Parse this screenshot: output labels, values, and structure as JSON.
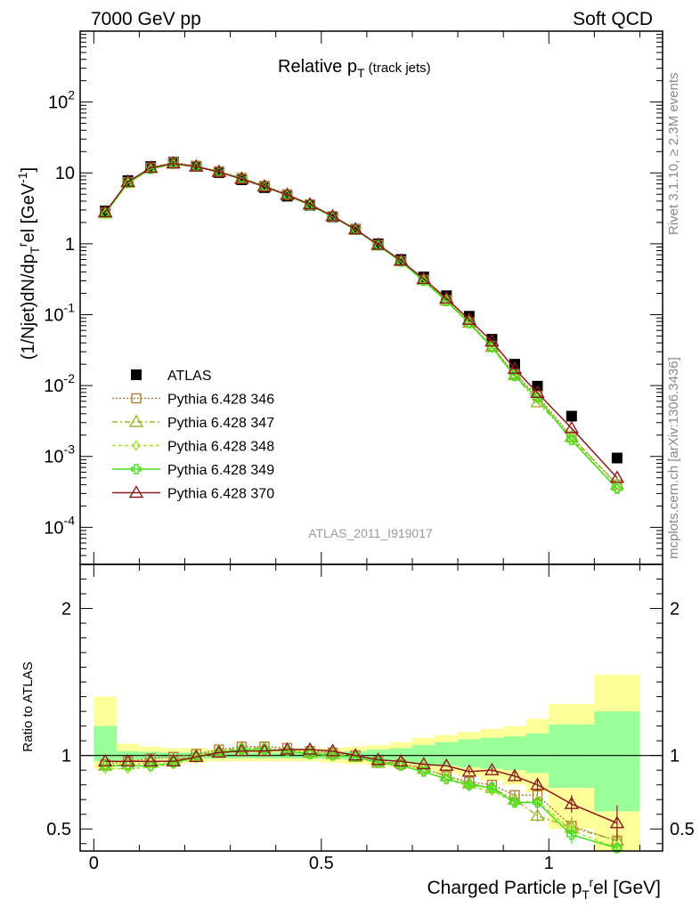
{
  "header": {
    "left_label": "7000 GeV pp",
    "right_label": "Soft QCD"
  },
  "side_labels": {
    "rivet": "Rivet 3.1.10, ≥ 2.3M events",
    "mcplots": "mcplots.cern.ch [arXiv:1306.3436]"
  },
  "chart_data": [
    {
      "type": "line",
      "title": "Relative p_T (track jets)",
      "ylabel": "(1/Njet)dN/dp_T^rel [GeV^-1]",
      "xlabel": "Charged Particle p_T^rel [GeV]",
      "analysis_tag": "ATLAS_2011_I919017",
      "yscale": "log",
      "xlim": [
        -0.03,
        1.25
      ],
      "ylim": [
        3e-05,
        1000
      ],
      "y_tick_labels": [
        "10^2",
        "10",
        "1",
        "10^-1",
        "10^-2",
        "10^-3",
        "10^-4"
      ],
      "legend_position": "center-left",
      "x": [
        0.025,
        0.075,
        0.125,
        0.175,
        0.225,
        0.275,
        0.325,
        0.375,
        0.425,
        0.475,
        0.525,
        0.575,
        0.625,
        0.675,
        0.725,
        0.775,
        0.825,
        0.875,
        0.925,
        0.975,
        1.05,
        1.15
      ],
      "series": [
        {
          "name": "ATLAS",
          "color": "#000000",
          "marker": "square-filled",
          "dash": "none",
          "values": [
            2.9,
            7.8,
            12.3,
            14.2,
            12.4,
            10.1,
            8.0,
            6.2,
            4.7,
            3.5,
            2.4,
            1.6,
            1.0,
            0.6,
            0.34,
            0.185,
            0.095,
            0.045,
            0.02,
            0.0098,
            0.0037,
            0.00095
          ]
        },
        {
          "name": "Pythia 6.428 346",
          "color": "#b07d3a",
          "marker": "square-open",
          "dash": "2,2",
          "values": [
            2.75,
            7.4,
            11.9,
            14.1,
            12.5,
            10.5,
            8.5,
            6.6,
            5.0,
            3.6,
            2.45,
            1.6,
            0.96,
            0.57,
            0.31,
            0.16,
            0.078,
            0.036,
            0.0146,
            0.0072,
            0.0019,
            0.0004
          ]
        },
        {
          "name": "Pythia 6.428 347",
          "color": "#9ab52a",
          "marker": "triangle-open",
          "dash": "6,3,2,3",
          "values": [
            2.7,
            7.3,
            11.7,
            13.8,
            12.3,
            10.4,
            8.4,
            6.5,
            4.9,
            3.55,
            2.42,
            1.58,
            0.95,
            0.57,
            0.31,
            0.158,
            0.077,
            0.035,
            0.014,
            0.0058,
            0.0019,
            0.0004
          ]
        },
        {
          "name": "Pythia 6.428 348",
          "color": "#a2e02a",
          "marker": "diamond-open",
          "dash": "4,3",
          "values": [
            2.65,
            7.1,
            11.3,
            13.3,
            12.1,
            10.3,
            8.3,
            6.4,
            4.85,
            3.5,
            2.4,
            1.58,
            0.95,
            0.56,
            0.3,
            0.155,
            0.075,
            0.034,
            0.0135,
            0.0068,
            0.0018,
            0.00035
          ]
        },
        {
          "name": "Pythia 6.428 349",
          "color": "#44dd1c",
          "marker": "cross-open",
          "dash": "none",
          "values": [
            2.7,
            7.2,
            11.4,
            13.5,
            12.2,
            10.3,
            8.3,
            6.4,
            4.85,
            3.5,
            2.4,
            1.58,
            0.95,
            0.56,
            0.3,
            0.155,
            0.076,
            0.035,
            0.0136,
            0.0067,
            0.0017,
            0.00035
          ]
        },
        {
          "name": "Pythia 6.428 370",
          "color": "#8b1a1a",
          "marker": "triangle-open",
          "dash": "none",
          "values": [
            2.8,
            7.5,
            11.8,
            13.6,
            12.3,
            10.3,
            8.2,
            6.4,
            4.9,
            3.6,
            2.45,
            1.6,
            0.97,
            0.58,
            0.32,
            0.17,
            0.085,
            0.042,
            0.0172,
            0.0079,
            0.0025,
            0.0005
          ]
        }
      ]
    },
    {
      "type": "line",
      "ylabel": "Ratio to ATLAS",
      "xlabel": "Charged Particle p_T^rel [GeV]",
      "xlim": [
        -0.03,
        1.25
      ],
      "ylim": [
        0.35,
        2.3
      ],
      "y_ticks": [
        0.5,
        1,
        2
      ],
      "y_tick_labels": [
        "0.5",
        "1",
        "2"
      ],
      "x_ticks": [
        0,
        0.5,
        1
      ],
      "x_tick_labels": [
        "0",
        "0.5",
        "1"
      ],
      "reference_line": 1,
      "uncertainty_bands": {
        "bin_edges": [
          0.0,
          0.05,
          0.1,
          0.15,
          0.2,
          0.25,
          0.3,
          0.35,
          0.4,
          0.45,
          0.5,
          0.55,
          0.6,
          0.65,
          0.7,
          0.75,
          0.8,
          0.85,
          0.9,
          0.95,
          1.0,
          1.1,
          1.2
        ],
        "stat": {
          "color": "#99ff99",
          "low": [
            0.96,
            0.97,
            0.975,
            0.98,
            0.98,
            0.98,
            0.98,
            0.98,
            0.98,
            0.98,
            0.975,
            0.97,
            0.96,
            0.95,
            0.94,
            0.93,
            0.92,
            0.91,
            0.9,
            0.88,
            0.78,
            0.62
          ],
          "high": [
            1.2,
            1.03,
            1.025,
            1.02,
            1.02,
            1.02,
            1.02,
            1.02,
            1.02,
            1.02,
            1.025,
            1.03,
            1.04,
            1.05,
            1.07,
            1.09,
            1.11,
            1.12,
            1.13,
            1.15,
            1.21,
            1.3
          ]
        },
        "total": {
          "color": "#ffff99",
          "low": [
            0.91,
            0.93,
            0.94,
            0.95,
            0.95,
            0.96,
            0.96,
            0.96,
            0.96,
            0.96,
            0.95,
            0.94,
            0.93,
            0.92,
            0.9,
            0.88,
            0.86,
            0.83,
            0.8,
            0.75,
            0.5,
            0.35
          ],
          "high": [
            1.4,
            1.08,
            1.06,
            1.05,
            1.05,
            1.04,
            1.04,
            1.04,
            1.04,
            1.05,
            1.05,
            1.06,
            1.07,
            1.09,
            1.12,
            1.14,
            1.16,
            1.18,
            1.2,
            1.25,
            1.35,
            1.55
          ]
        }
      },
      "series": [
        {
          "name": "Pythia 6.428 346",
          "color": "#b07d3a",
          "marker": "square-open",
          "dash": "2,2",
          "values": [
            0.94,
            0.96,
            0.98,
            0.99,
            1.01,
            1.04,
            1.06,
            1.06,
            1.05,
            1.03,
            1.02,
            1.0,
            0.96,
            0.94,
            0.91,
            0.86,
            0.82,
            0.8,
            0.73,
            0.73,
            0.52,
            0.42
          ],
          "errors": [
            0.01,
            0.01,
            0.01,
            0.01,
            0.01,
            0.01,
            0.01,
            0.01,
            0.01,
            0.01,
            0.01,
            0.01,
            0.01,
            0.01,
            0.01,
            0.01,
            0.02,
            0.02,
            0.03,
            0.04,
            0.06,
            0.08
          ]
        },
        {
          "name": "Pythia 6.428 347",
          "color": "#9ab52a",
          "marker": "triangle-open",
          "dash": "6,3,2,3",
          "values": [
            0.93,
            0.94,
            0.95,
            0.97,
            1.0,
            1.03,
            1.05,
            1.05,
            1.04,
            1.02,
            1.01,
            0.99,
            0.95,
            0.95,
            0.91,
            0.86,
            0.81,
            0.78,
            0.7,
            0.59,
            0.51,
            0.42
          ],
          "errors": [
            0.01,
            0.01,
            0.01,
            0.01,
            0.01,
            0.01,
            0.01,
            0.01,
            0.01,
            0.01,
            0.01,
            0.01,
            0.01,
            0.01,
            0.01,
            0.01,
            0.02,
            0.02,
            0.03,
            0.04,
            0.06,
            0.08
          ]
        },
        {
          "name": "Pythia 6.428 348",
          "color": "#a2e02a",
          "marker": "diamond-open",
          "dash": "4,3",
          "values": [
            0.91,
            0.91,
            0.92,
            0.94,
            0.98,
            1.02,
            1.04,
            1.04,
            1.03,
            1.01,
            1.0,
            0.99,
            0.95,
            0.93,
            0.89,
            0.84,
            0.79,
            0.76,
            0.68,
            0.69,
            0.49,
            0.37
          ],
          "errors": [
            0.01,
            0.01,
            0.01,
            0.01,
            0.01,
            0.01,
            0.01,
            0.01,
            0.01,
            0.01,
            0.01,
            0.01,
            0.01,
            0.01,
            0.01,
            0.01,
            0.02,
            0.02,
            0.03,
            0.04,
            0.06,
            0.08
          ]
        },
        {
          "name": "Pythia 6.428 349",
          "color": "#44dd1c",
          "marker": "cross-open",
          "dash": "none",
          "values": [
            0.93,
            0.93,
            0.93,
            0.95,
            0.99,
            1.02,
            1.04,
            1.04,
            1.03,
            1.01,
            1.0,
            0.99,
            0.95,
            0.93,
            0.89,
            0.84,
            0.8,
            0.78,
            0.68,
            0.68,
            0.46,
            0.37
          ],
          "errors": [
            0.01,
            0.01,
            0.01,
            0.01,
            0.01,
            0.01,
            0.01,
            0.01,
            0.01,
            0.01,
            0.01,
            0.01,
            0.01,
            0.01,
            0.01,
            0.01,
            0.02,
            0.02,
            0.03,
            0.04,
            0.06,
            0.08
          ]
        },
        {
          "name": "Pythia 6.428 370",
          "color": "#8b1a1a",
          "marker": "triangle-open",
          "dash": "none",
          "values": [
            0.96,
            0.96,
            0.96,
            0.96,
            0.99,
            1.02,
            1.03,
            1.03,
            1.04,
            1.04,
            1.03,
            1.0,
            0.97,
            0.96,
            0.94,
            0.93,
            0.89,
            0.9,
            0.86,
            0.8,
            0.67,
            0.54
          ],
          "errors": [
            0.01,
            0.01,
            0.01,
            0.01,
            0.01,
            0.01,
            0.01,
            0.01,
            0.01,
            0.01,
            0.01,
            0.01,
            0.01,
            0.01,
            0.01,
            0.01,
            0.02,
            0.02,
            0.03,
            0.04,
            0.06,
            0.12
          ]
        }
      ]
    }
  ]
}
